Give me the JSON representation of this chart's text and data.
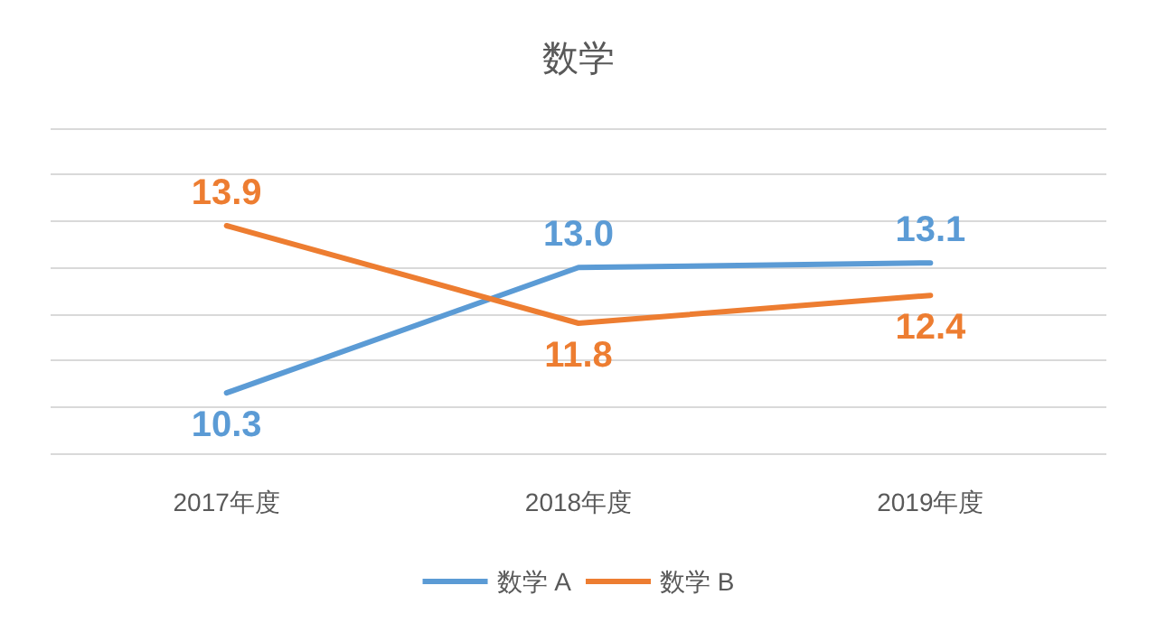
{
  "chart_data": {
    "type": "line",
    "title": "数学",
    "categories": [
      "2017年度",
      "2018年度",
      "2019年度"
    ],
    "series": [
      {
        "name": "数学 A",
        "color": "#5b9bd5",
        "values": [
          10.3,
          13.0,
          13.1
        ],
        "value_labels": [
          "10.3",
          "13.0",
          "13.1"
        ]
      },
      {
        "name": "数学 B",
        "color": "#ed7d31",
        "values": [
          13.9,
          11.8,
          12.4
        ]
      }
    ],
    "ylim": [
      9,
      16
    ],
    "yticks": [
      {
        "value": 9,
        "label": null
      },
      {
        "value": 10,
        "label": null
      },
      {
        "value": 11,
        "label": null
      },
      {
        "value": 12,
        "label": null
      },
      {
        "value": 13,
        "label": null
      },
      {
        "value": 14,
        "label": null
      },
      {
        "value": 15,
        "label": null
      },
      {
        "value": 16,
        "label": null
      }
    ],
    "tick_labels": "x",
    "grid": "y",
    "legend": "bottom",
    "data_labels": true,
    "marker": "none",
    "line_style": "solid"
  }
}
